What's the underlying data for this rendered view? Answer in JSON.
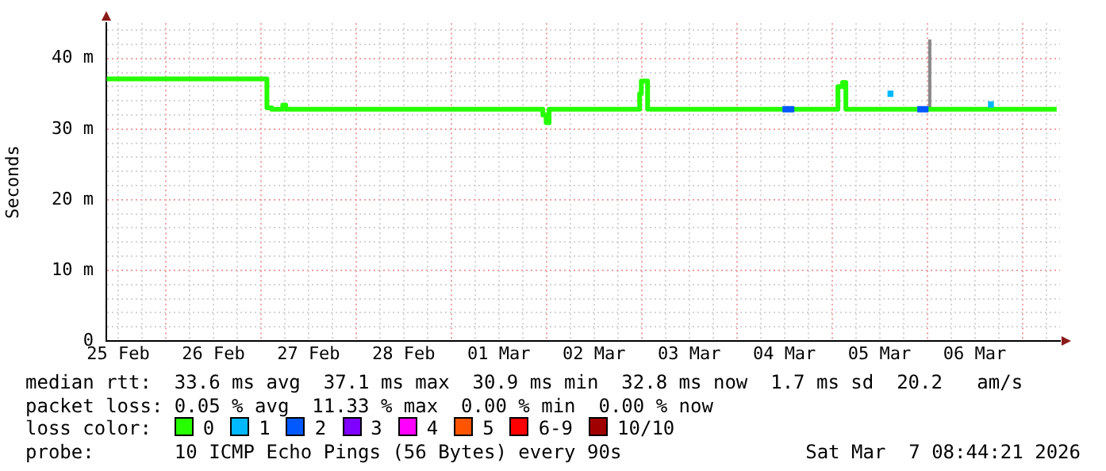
{
  "chart_data": {
    "type": "step",
    "ylabel": "Seconds",
    "legend_title": "loss color:",
    "legend": "bottom",
    "grid": true,
    "xlim": [
      "2026-02-25T09:00",
      "2026-03-07T09:30"
    ],
    "ylim": [
      0,
      45
    ],
    "yticks": [
      0,
      {
        "value": 2,
        "label": null
      },
      {
        "value": 4,
        "label": null
      },
      {
        "value": 6,
        "label": null
      },
      {
        "value": 8,
        "label": null
      },
      {
        "value": 10,
        "label": "10 m"
      },
      {
        "value": 12,
        "label": null
      },
      {
        "value": 14,
        "label": null
      },
      {
        "value": 16,
        "label": null
      },
      {
        "value": 18,
        "label": null
      },
      {
        "value": 20,
        "label": "20 m"
      },
      {
        "value": 22,
        "label": null
      },
      {
        "value": 24,
        "label": null
      },
      {
        "value": 26,
        "label": null
      },
      {
        "value": 28,
        "label": null
      },
      {
        "value": 30,
        "label": "30 m"
      },
      {
        "value": 32,
        "label": null
      },
      {
        "value": 34,
        "label": null
      },
      {
        "value": 36,
        "label": null
      },
      {
        "value": 38,
        "label": null
      },
      {
        "value": 40,
        "label": "40 m"
      },
      {
        "value": 42,
        "label": null
      },
      {
        "value": 44,
        "label": null
      }
    ],
    "xticks": [
      {
        "value": "2026-02-25T12:00",
        "label": "25 Feb"
      },
      {
        "value": "2026-02-25T18:00",
        "label": null
      },
      {
        "value": "2026-02-26T00:00",
        "label": null
      },
      {
        "value": "2026-02-26T06:00",
        "label": null
      },
      {
        "value": "2026-02-26T12:00",
        "label": "26 Feb"
      },
      {
        "value": "2026-02-26T18:00",
        "label": null
      },
      {
        "value": "2026-02-27T00:00",
        "label": null
      },
      {
        "value": "2026-02-27T06:00",
        "label": null
      },
      {
        "value": "2026-02-27T12:00",
        "label": "27 Feb"
      },
      {
        "value": "2026-02-27T18:00",
        "label": null
      },
      {
        "value": "2026-02-28T00:00",
        "label": null
      },
      {
        "value": "2026-02-28T06:00",
        "label": null
      },
      {
        "value": "2026-02-28T12:00",
        "label": "28 Feb"
      },
      {
        "value": "2026-02-28T18:00",
        "label": null
      },
      {
        "value": "2026-03-01T00:00",
        "label": null
      },
      {
        "value": "2026-03-01T06:00",
        "label": null
      },
      {
        "value": "2026-03-01T12:00",
        "label": "01 Mar"
      },
      {
        "value": "2026-03-01T18:00",
        "label": null
      },
      {
        "value": "2026-03-02T00:00",
        "label": null
      },
      {
        "value": "2026-03-02T06:00",
        "label": null
      },
      {
        "value": "2026-03-02T12:00",
        "label": "02 Mar"
      },
      {
        "value": "2026-03-02T18:00",
        "label": null
      },
      {
        "value": "2026-03-03T00:00",
        "label": null
      },
      {
        "value": "2026-03-03T06:00",
        "label": null
      },
      {
        "value": "2026-03-03T12:00",
        "label": "03 Mar"
      },
      {
        "value": "2026-03-03T18:00",
        "label": null
      },
      {
        "value": "2026-03-04T00:00",
        "label": null
      },
      {
        "value": "2026-03-04T06:00",
        "label": null
      },
      {
        "value": "2026-03-04T12:00",
        "label": "04 Mar"
      },
      {
        "value": "2026-03-04T18:00",
        "label": null
      },
      {
        "value": "2026-03-05T00:00",
        "label": null
      },
      {
        "value": "2026-03-05T06:00",
        "label": null
      },
      {
        "value": "2026-03-05T12:00",
        "label": "05 Mar"
      },
      {
        "value": "2026-03-05T18:00",
        "label": null
      },
      {
        "value": "2026-03-06T00:00",
        "label": null
      },
      {
        "value": "2026-03-06T06:00",
        "label": null
      },
      {
        "value": "2026-03-06T12:00",
        "label": "06 Mar"
      },
      {
        "value": "2026-03-06T18:00",
        "label": null
      },
      {
        "value": "2026-03-07T00:00",
        "label": null
      },
      {
        "value": "2026-03-07T06:00",
        "label": null
      }
    ],
    "series": [
      {
        "type": "line",
        "color": "#888888",
        "x": [
          "2026-03-06T00:40",
          "2026-03-06T00:40"
        ],
        "values": [
          33,
          42.7
        ]
      },
      {
        "name": "0",
        "color": "#26ff00",
        "x": [
          "2026-02-25T09:05",
          "2026-02-27T00:40",
          "2026-02-27T01:30",
          "2026-02-27T02:40",
          "2026-02-27T05:30",
          "2026-02-27T06:15",
          "2026-03-01T23:05",
          "2026-03-01T23:55",
          "2026-03-02T00:40",
          "2026-03-02T23:30",
          "2026-03-02T23:55",
          "2026-03-03T01:30",
          "2026-03-05T01:30",
          "2026-03-05T02:40",
          "2026-03-05T03:30",
          "2026-03-07T08:40"
        ],
        "values": [
          37.1,
          37.1,
          33,
          32.8,
          33.4,
          32.8,
          32,
          30.9,
          32.8,
          35,
          36.8,
          32.8,
          36,
          36.6,
          32.8,
          32.8
        ]
      },
      {
        "name": "1",
        "color": "#00b8ff",
        "x": [
          "2026-03-05T14:00",
          "2026-03-05T15:30",
          "2026-03-06T12:00",
          "2026-03-06T15:20",
          "2026-03-06T16:50"
        ],
        "values": [
          35,
          35,
          null,
          33.5,
          33.5
        ]
      },
      {
        "name": "2",
        "color": "#0059ff",
        "x": [
          "2026-03-04T11:30",
          "2026-03-04T14:30",
          "2026-03-05T18:00",
          "2026-03-05T21:30",
          "2026-03-06T00:20"
        ],
        "values": [
          32.8,
          32.8,
          null,
          32.8,
          32.8
        ]
      },
      {
        "name": "3",
        "color": "#7e00ff"
      },
      {
        "name": "4",
        "color": "#ff00ff"
      },
      {
        "name": "5",
        "color": "#ff5500"
      },
      {
        "name": "6-9",
        "color": "#ff0000"
      },
      {
        "name": "10/10",
        "color": "#a10000"
      }
    ],
    "annotations": [
      "median rtt:  33.6 ms avg  37.1 ms max  30.9 ms min  32.8 ms now  1.7 ms sd  20.2   am/s",
      "packet loss: 0.05 % avg  11.33 % max  0.00 % min  0.00 % now",
      "probe:       10 ICMP Echo Pings (56 Bytes) every 90s",
      "Sat Mar  7 08:44:21 2026"
    ]
  }
}
